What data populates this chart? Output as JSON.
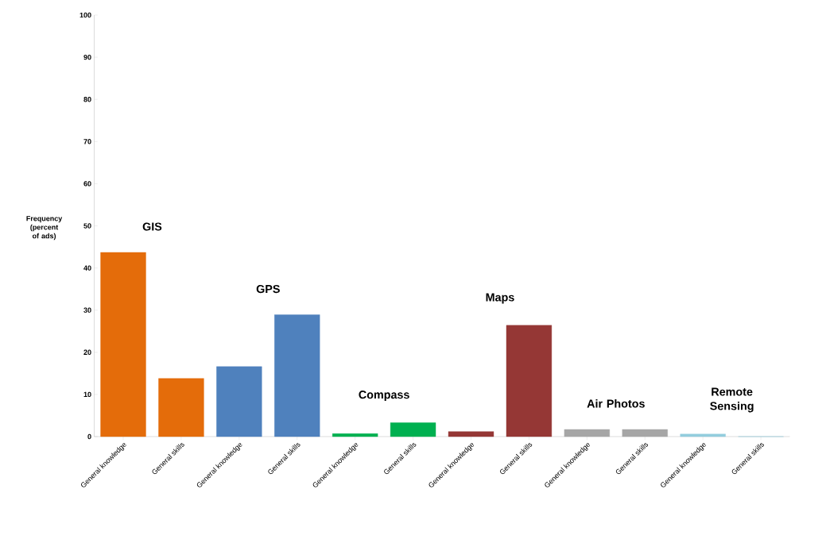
{
  "chart_data": {
    "type": "bar",
    "ylabel": "Frequency (percent of ads)",
    "categories": [
      "General knowledge",
      "General skills",
      "General knowledge",
      "General skills",
      "General knowledge",
      "General skills",
      "General knowledge",
      "General skills",
      "General knowledge",
      "General skills",
      "General knowledge",
      "General skills"
    ],
    "values": [
      43.7,
      13.8,
      16.6,
      28.9,
      0.7,
      3.3,
      1.2,
      26.4,
      1.7,
      1.7,
      0.6,
      0
    ],
    "colors": [
      "#e46c0a",
      "#e46c0a",
      "#4f81bd",
      "#4f81bd",
      "#00b050",
      "#00b050",
      "#953735",
      "#953735",
      "#a6a6a6",
      "#a6a6a6",
      "#93cddd",
      "#93cddd"
    ],
    "annotations": [
      "GIS",
      "GPS",
      "Compass",
      "Maps",
      "Air Photos",
      "Remote Sensing"
    ],
    "ylim": [
      0,
      100
    ],
    "yticks": [
      0,
      10,
      20,
      30,
      40,
      50,
      60,
      70,
      80,
      90,
      100
    ],
    "grid": false
  }
}
